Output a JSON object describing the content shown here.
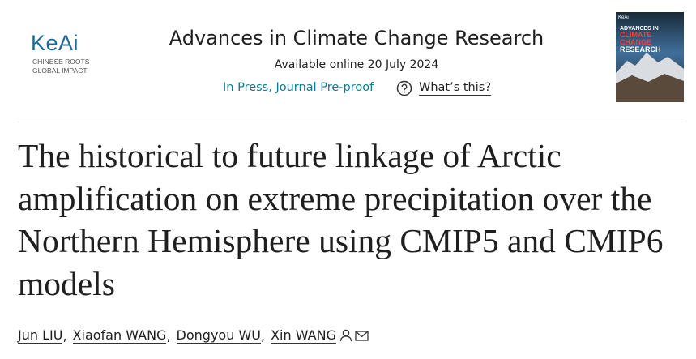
{
  "logo": {
    "name": "KeAi",
    "tagline": [
      "CHINESE ROOTS",
      "GLOBAL IMPACT"
    ]
  },
  "journal": {
    "title": "Advances in Climate Change Research",
    "available": "Available online 20 July 2024",
    "status": "In Press, Journal Pre-proof",
    "help": "What’s this?"
  },
  "cover": {
    "publisher": "KeAi",
    "title": [
      "ADVANCES IN",
      "CLIMATE",
      "CHANGE",
      "RESEARCH"
    ]
  },
  "article": {
    "title": "The historical to future linkage of Arctic amplification on extreme precipitation over the Northern Hemisphere using CMIP5 and CMIP6 models",
    "authors": [
      "Jun LIU",
      "Xiaofan WANG",
      "Dongyou WU",
      "Xin WANG"
    ],
    "separator": ","
  }
}
